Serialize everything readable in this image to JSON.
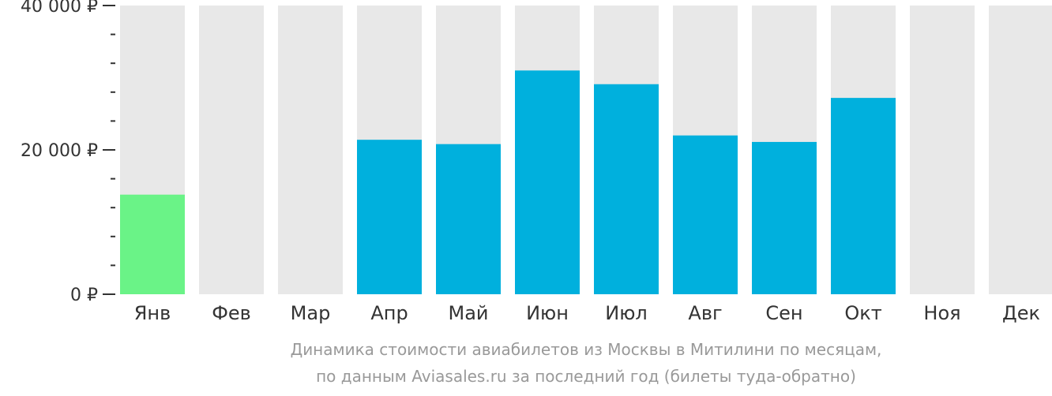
{
  "chart_data": {
    "type": "bar",
    "categories": [
      "Янв",
      "Фев",
      "Мар",
      "Апр",
      "Май",
      "Июн",
      "Июл",
      "Авг",
      "Сен",
      "Окт",
      "Ноя",
      "Дек"
    ],
    "values": [
      13800,
      null,
      null,
      21400,
      20800,
      31000,
      29100,
      22000,
      21100,
      27200,
      null,
      null
    ],
    "ylim": [
      0,
      40000
    ],
    "y_ticks": [
      {
        "value": 0,
        "label": "0 ₽"
      },
      {
        "value": 20000,
        "label": "20 000 ₽"
      },
      {
        "value": 40000,
        "label": "40 000 ₽"
      }
    ],
    "y_minor_tick_step": 4000,
    "highlight_index": 0,
    "colors": {
      "bar": "#00b0dd",
      "highlight": "#6af387",
      "track": "#e8e8e8",
      "axis": "#333333"
    }
  },
  "caption": {
    "line1": "Динамика стоимости авиабилетов из Москвы в Митилини по месяцам,",
    "line2": "по данным Aviasales.ru за последний год (билеты туда-обратно)"
  }
}
